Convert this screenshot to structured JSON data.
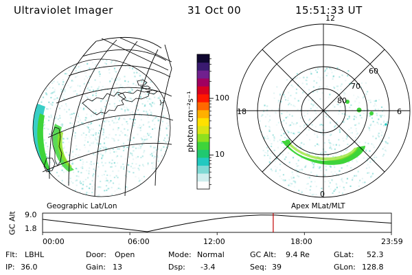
{
  "header": {
    "instrument": "Ultraviolet Imager",
    "date": "31 Oct 00",
    "time": "15:51:33 UT"
  },
  "panels": {
    "left_label": "Geographic Lat/Lon",
    "right_label": "Apex MLat/MLT"
  },
  "colorbar": {
    "unit": "photon cm⁻²s⁻¹",
    "ticks": [
      {
        "value": 10,
        "label": "10"
      },
      {
        "value": 100,
        "label": "100"
      }
    ],
    "range": [
      2.5,
      600
    ],
    "scale": "log",
    "colors": [
      "#ffffff",
      "#cfeeee",
      "#7fd9d4",
      "#22c9c0",
      "#20c870",
      "#3ed43a",
      "#8fe01e",
      "#d9e414",
      "#ffe000",
      "#ffb000",
      "#ff6800",
      "#ff1800",
      "#d80020",
      "#a00060",
      "#70208e",
      "#3a1a70",
      "#100830"
    ]
  },
  "polar": {
    "mlt_labels": [
      "12",
      "18",
      "6",
      "0"
    ],
    "lat_labels": [
      "60",
      "70",
      "80"
    ]
  },
  "timeline": {
    "ylabel": "GC Alt",
    "ytick_high": "9.0",
    "ytick_low": "1.8",
    "xticks": [
      "00:00",
      "06:00",
      "12:00",
      "18:00",
      "23:59"
    ],
    "current_time_hours": 15.86
  },
  "footer": {
    "filter": {
      "key": "Flt:",
      "value": "LBHL"
    },
    "ip": {
      "key": "IP:",
      "value": "36.0"
    },
    "door": {
      "key": "Door:",
      "value": "Open"
    },
    "gain": {
      "key": "Gain:",
      "value": "13"
    },
    "mode": {
      "key": "Mode:",
      "value": "Normal"
    },
    "dsp": {
      "key": "Dsp:",
      "value": "-3.4"
    },
    "gcalt": {
      "key": "GC Alt:",
      "value": "9.4 Re"
    },
    "seq": {
      "key": "Seq:",
      "value": "39"
    },
    "glat": {
      "key": "GLat:",
      "value": "52.3"
    },
    "glon": {
      "key": "GLon:",
      "value": "128.8"
    }
  }
}
